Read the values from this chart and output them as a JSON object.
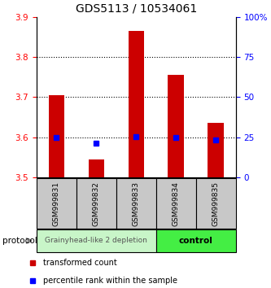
{
  "title": "GDS5113 / 10534061",
  "samples": [
    "GSM999831",
    "GSM999832",
    "GSM999833",
    "GSM999834",
    "GSM999835"
  ],
  "red_values": [
    3.705,
    3.545,
    3.865,
    3.755,
    3.635
  ],
  "blue_values": [
    3.6,
    3.585,
    3.602,
    3.6,
    3.593
  ],
  "ylim_left": [
    3.5,
    3.9
  ],
  "ylim_right": [
    0,
    100
  ],
  "yticks_left": [
    3.5,
    3.6,
    3.7,
    3.8,
    3.9
  ],
  "yticks_right": [
    0,
    25,
    50,
    75,
    100
  ],
  "ytick_right_labels": [
    "0",
    "25",
    "50",
    "75",
    "100%"
  ],
  "base_value": 3.5,
  "group1_label": "Grainyhead-like 2 depletion",
  "group2_label": "control",
  "protocol_label": "protocol",
  "group1_color_light": "#c8f5c8",
  "group2_color": "#44ee44",
  "bar_bg_color": "#c8c8c8",
  "legend_red_label": "transformed count",
  "legend_blue_label": "percentile rank within the sample",
  "title_fontsize": 10,
  "tick_fontsize": 7.5,
  "sample_fontsize": 6.5,
  "group_fontsize": 6.5,
  "legend_fontsize": 7
}
